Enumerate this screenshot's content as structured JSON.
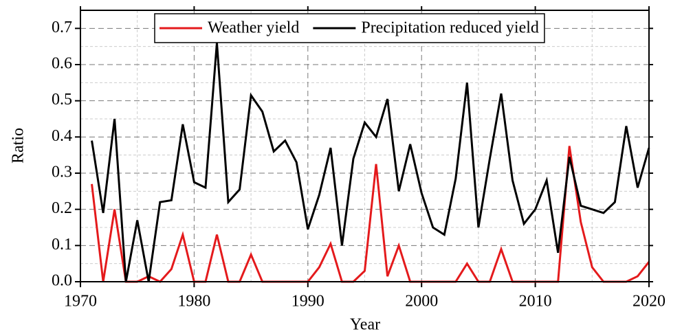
{
  "chart_data": {
    "type": "line",
    "xlabel": "Year",
    "ylabel": "Ratio",
    "x": [
      1971,
      1972,
      1973,
      1974,
      1975,
      1976,
      1977,
      1978,
      1979,
      1980,
      1981,
      1982,
      1983,
      1984,
      1985,
      1986,
      1987,
      1988,
      1989,
      1990,
      1991,
      1992,
      1993,
      1994,
      1995,
      1996,
      1997,
      1998,
      1999,
      2000,
      2001,
      2002,
      2003,
      2004,
      2005,
      2006,
      2007,
      2008,
      2009,
      2010,
      2011,
      2012,
      2013,
      2014,
      2015,
      2016,
      2017,
      2018,
      2019,
      2020
    ],
    "series": [
      {
        "name": "Weather yield",
        "color": "#e41a1c",
        "values": [
          0.27,
          0,
          0.2,
          0,
          0,
          0.015,
          0,
          0.035,
          0.13,
          0,
          0,
          0.13,
          0,
          0,
          0.075,
          0,
          0,
          0,
          0,
          0,
          0.04,
          0.105,
          0,
          0,
          0.03,
          0.325,
          0.015,
          0.1,
          0,
          0,
          0,
          0,
          0,
          0.05,
          0,
          0,
          0.09,
          0,
          0,
          0,
          0,
          0,
          0.375,
          0.165,
          0.04,
          0,
          0,
          0,
          0.015,
          0.055
        ]
      },
      {
        "name": "Precipitation reduced yield",
        "color": "#000000",
        "values": [
          0.39,
          0.19,
          0.45,
          0,
          0.17,
          0,
          0.22,
          0.225,
          0.435,
          0.275,
          0.26,
          0.66,
          0.22,
          0.255,
          0.515,
          0.47,
          0.36,
          0.39,
          0.33,
          0.145,
          0.24,
          0.37,
          0.1,
          0.34,
          0.44,
          0.4,
          0.505,
          0.25,
          0.38,
          0.245,
          0.15,
          0.13,
          0.285,
          0.55,
          0.15,
          0.34,
          0.52,
          0.28,
          0.16,
          0.2,
          0.28,
          0.08,
          0.345,
          0.21,
          0.2,
          0.19,
          0.22,
          0.43,
          0.26,
          0.37
        ]
      }
    ],
    "xlim": [
      1970,
      2020
    ],
    "xticks": [
      1970,
      1980,
      1990,
      2000,
      2010,
      2020
    ],
    "ylim": [
      0,
      0.75
    ],
    "yticks": [
      {
        "value": 0,
        "label": "0.0"
      },
      0.1,
      0.2,
      0.3,
      0.4,
      0.5,
      0.6,
      0.7
    ],
    "grid": true,
    "legend": "top"
  }
}
